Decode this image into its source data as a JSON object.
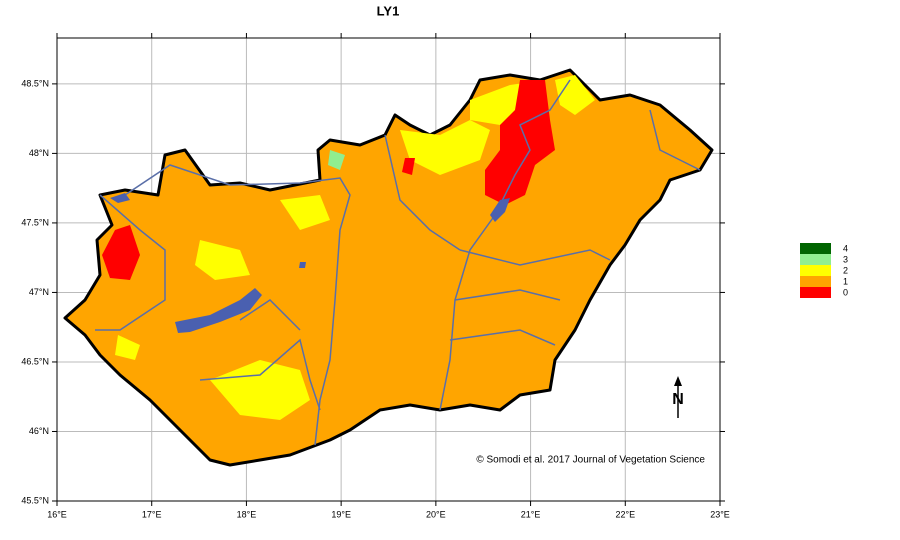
{
  "map": {
    "title": "LY1",
    "xlim": [
      16,
      23
    ],
    "ylim": [
      45.5,
      48.83
    ],
    "xticks": [
      {
        "value": 16,
        "label": "16°E"
      },
      {
        "value": 17,
        "label": "17°E"
      },
      {
        "value": 18,
        "label": "18°E"
      },
      {
        "value": 19,
        "label": "19°E"
      },
      {
        "value": 20,
        "label": "20°E"
      },
      {
        "value": 21,
        "label": "21°E"
      },
      {
        "value": 22,
        "label": "22°E"
      },
      {
        "value": 23,
        "label": "23°E"
      }
    ],
    "yticks": [
      {
        "value": 45.5,
        "label": "45.5°N"
      },
      {
        "value": 46,
        "label": "46°N"
      },
      {
        "value": 46.5,
        "label": "46.5°N"
      },
      {
        "value": 47,
        "label": "47°N"
      },
      {
        "value": 47.5,
        "label": "47.5°N"
      },
      {
        "value": 48,
        "label": "48°N"
      },
      {
        "value": 48.5,
        "label": "48.5°N"
      }
    ],
    "legend": [
      {
        "label": "4",
        "color": "#006400"
      },
      {
        "label": "3",
        "color": "#90ee90"
      },
      {
        "label": "2",
        "color": "#ffff00"
      },
      {
        "label": "1",
        "color": "#ffa500"
      },
      {
        "label": "0",
        "color": "#ff0000"
      }
    ],
    "north_label": "N",
    "credit": "© Somodi et al. 2017 Journal of Vegetation Science"
  }
}
